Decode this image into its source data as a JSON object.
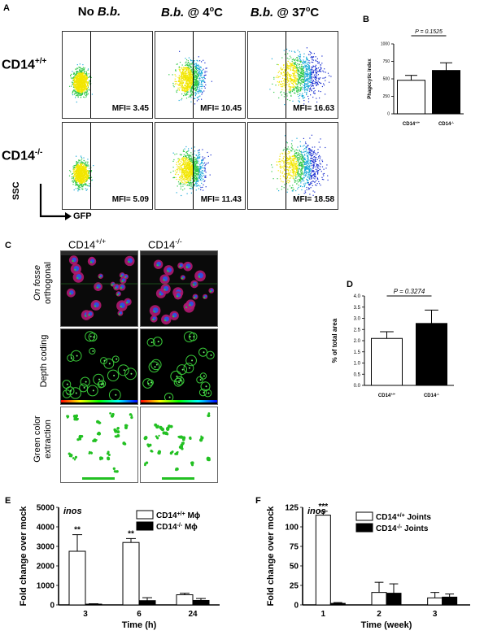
{
  "panel_a": {
    "letter": "A",
    "columns": [
      {
        "parts": [
          "No ",
          "B.b."
        ],
        "italic": [
          false,
          true
        ],
        "sup": ""
      },
      {
        "parts": [
          "B.b.",
          " @ 4",
          "C"
        ],
        "italic": [
          true,
          false,
          false
        ],
        "sup": "o"
      },
      {
        "parts": [
          "B.b.",
          " @ 37",
          "C"
        ],
        "italic": [
          true,
          false,
          false
        ],
        "sup": "o"
      }
    ],
    "rows": [
      {
        "label": "CD14",
        "sup": "+/+"
      },
      {
        "label": "CD14",
        "sup": "-/-"
      }
    ],
    "mfi": [
      [
        "MFI= 3.45",
        "MFI= 10.45",
        "MFI= 16.63"
      ],
      [
        "MFI= 5.09",
        "MFI= 11.43",
        "MFI= 18.58"
      ]
    ],
    "y_axis": "SSC",
    "x_axis": "GFP"
  },
  "panel_b": {
    "letter": "B",
    "ylabel": "Phagocytic index",
    "p_value": "P = 0.1525",
    "groups": [
      {
        "name": "CD14",
        "sup": "+/+"
      },
      {
        "name": "CD14",
        "sup": "-/-"
      }
    ]
  },
  "panel_c": {
    "letter": "C",
    "columns": [
      {
        "name": "CD14",
        "sup": "+/+"
      },
      {
        "name": "CD14",
        "sup": "-/-"
      }
    ],
    "row_labels": [
      {
        "line1": "On fosse",
        "line2": "orthogonal"
      },
      {
        "line1": "Depth coding",
        "line2": ""
      },
      {
        "line1": "Green color",
        "line2": "extraction"
      }
    ]
  },
  "panel_d": {
    "letter": "D",
    "ylabel": "% of total area",
    "p_value": "P = 0.3274",
    "groups": [
      {
        "name": "CD14",
        "sup": "+/+"
      },
      {
        "name": "CD14",
        "sup": "-/-"
      }
    ]
  },
  "panel_e": {
    "letter": "E",
    "gene": "inos",
    "ylabel": "Fold change over mock",
    "xlabel": "Time (h)",
    "legend": [
      {
        "name": "CD14",
        "sup": "+/+",
        "suffix": " Mϕ"
      },
      {
        "name": "CD14",
        "sup": "-/-",
        "suffix": " Mϕ"
      }
    ],
    "significance": [
      "**",
      "**"
    ]
  },
  "panel_f": {
    "letter": "F",
    "gene": "inos",
    "ylabel": "Fold change over mock",
    "xlabel": "Time (week)",
    "legend": [
      {
        "name": "CD14",
        "sup": "+/+",
        "suffix": " Joints"
      },
      {
        "name": "CD14",
        "sup": "-/-",
        "suffix": " Joints"
      }
    ],
    "significance": [
      "***"
    ]
  },
  "chart_data": [
    {
      "type": "bar",
      "panel": "B",
      "categories": [
        "CD14+/+",
        "CD14-/-"
      ],
      "series": [
        {
          "values": [
            480,
            620
          ],
          "errors": [
            70,
            110
          ]
        }
      ],
      "ylabel": "Phagocytic index",
      "ylim": [
        0,
        1000
      ],
      "yticks": [
        0,
        250,
        500,
        750,
        1000
      ],
      "colors": [
        "#ffffff",
        "#000000"
      ]
    },
    {
      "type": "bar",
      "panel": "D",
      "categories": [
        "CD14+/+",
        "CD14-/-"
      ],
      "series": [
        {
          "values": [
            2.1,
            2.77
          ],
          "errors": [
            0.3,
            0.6
          ]
        }
      ],
      "ylabel": "% of total area",
      "ylim": [
        0,
        4.0
      ],
      "yticks": [
        0.0,
        0.5,
        1.0,
        1.5,
        2.0,
        2.5,
        3.0,
        3.5,
        4.0
      ],
      "colors": [
        "#ffffff",
        "#000000"
      ]
    },
    {
      "type": "bar",
      "panel": "E",
      "categories": [
        "3",
        "6",
        "24"
      ],
      "series": [
        {
          "name": "CD14+/+ Mϕ",
          "values": [
            2750,
            3200,
            520
          ],
          "errors": [
            850,
            200,
            80
          ],
          "color": "#ffffff"
        },
        {
          "name": "CD14-/- Mϕ",
          "values": [
            40,
            220,
            230
          ],
          "errors": [
            20,
            150,
            100
          ],
          "color": "#000000"
        }
      ],
      "xlabel": "Time (h)",
      "ylabel": "Fold change over mock",
      "ylim": [
        0,
        5000
      ],
      "yticks": [
        0,
        1000,
        2000,
        3000,
        4000,
        5000
      ]
    },
    {
      "type": "bar",
      "panel": "F",
      "categories": [
        "1",
        "2",
        "3"
      ],
      "series": [
        {
          "name": "CD14+/+ Joints",
          "values": [
            115,
            16,
            9
          ],
          "errors": [
            5,
            13,
            7
          ],
          "color": "#ffffff"
        },
        {
          "name": "CD14-/- Joints",
          "values": [
            2,
            15,
            10
          ],
          "errors": [
            1,
            12,
            4
          ],
          "color": "#000000"
        }
      ],
      "xlabel": "Time (week)",
      "ylabel": "Fold change over mock",
      "ylim": [
        0,
        125
      ],
      "yticks": [
        0,
        25,
        50,
        75,
        100,
        125
      ]
    }
  ]
}
